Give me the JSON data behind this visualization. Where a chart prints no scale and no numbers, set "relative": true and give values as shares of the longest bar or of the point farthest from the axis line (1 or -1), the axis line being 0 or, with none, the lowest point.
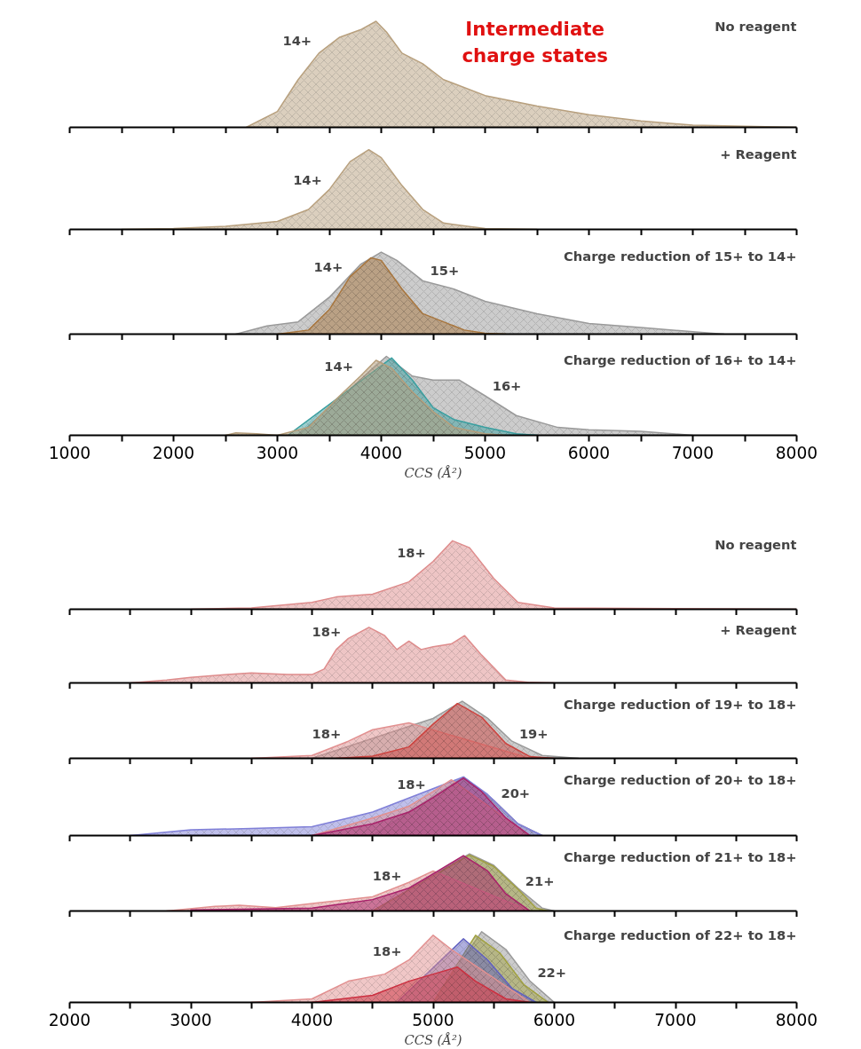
{
  "chart_data": [
    {
      "type": "area",
      "relative": true,
      "title": "No reagent",
      "xlim": [
        1000,
        8000
      ],
      "tick_labels": false,
      "xticks": [
        1000,
        {
          "value": 1500,
          "label": null
        },
        2000,
        {
          "value": 2500,
          "label": null
        },
        3000,
        {
          "value": 3500,
          "label": null
        },
        4000,
        {
          "value": 4500,
          "label": null
        },
        5000,
        {
          "value": 5500,
          "label": null
        },
        6000,
        {
          "value": 6500,
          "label": null
        },
        7000,
        {
          "value": 7500,
          "label": null
        },
        8000
      ],
      "annotations": [
        "Intermediate charge states"
      ],
      "series": [
        {
          "name": "14+",
          "color": "#b8a07e",
          "x": [
            2700,
            3000,
            3200,
            3400,
            3600,
            3800,
            3950,
            4050,
            4200,
            4400,
            4600,
            5000,
            5500,
            6000,
            6500,
            7000,
            7500,
            8000
          ],
          "values": [
            0,
            0.15,
            0.45,
            0.7,
            0.85,
            0.92,
            1.0,
            0.9,
            0.7,
            0.6,
            0.45,
            0.3,
            0.2,
            0.12,
            0.06,
            0.02,
            0.01,
            0
          ]
        }
      ]
    },
    {
      "type": "area",
      "relative": true,
      "title": "+ Reagent",
      "xlim": [
        1000,
        8000
      ],
      "tick_labels": false,
      "xticks": [
        1000,
        {
          "value": 1500,
          "label": null
        },
        2000,
        {
          "value": 2500,
          "label": null
        },
        3000,
        {
          "value": 3500,
          "label": null
        },
        4000,
        {
          "value": 4500,
          "label": null
        },
        5000,
        {
          "value": 5500,
          "label": null
        },
        6000,
        {
          "value": 6500,
          "label": null
        },
        7000,
        {
          "value": 7500,
          "label": null
        },
        8000
      ],
      "series": [
        {
          "name": "14+",
          "color": "#b8a07e",
          "x": [
            1500,
            2000,
            2500,
            3000,
            3300,
            3500,
            3700,
            3880,
            4000,
            4200,
            4400,
            4600,
            5000,
            5500
          ],
          "values": [
            0,
            0.01,
            0.04,
            0.1,
            0.25,
            0.5,
            0.85,
            1.0,
            0.9,
            0.55,
            0.25,
            0.08,
            0.01,
            0
          ]
        }
      ]
    },
    {
      "type": "area",
      "relative": true,
      "title": "Charge reduction of 15+ to 14+",
      "xlim": [
        1000,
        8000
      ],
      "tick_labels": false,
      "xticks": [
        1000,
        {
          "value": 1500,
          "label": null
        },
        2000,
        {
          "value": 2500,
          "label": null
        },
        3000,
        {
          "value": 3500,
          "label": null
        },
        4000,
        {
          "value": 4500,
          "label": null
        },
        5000,
        {
          "value": 5500,
          "label": null
        },
        6000,
        {
          "value": 6500,
          "label": null
        },
        7000,
        {
          "value": 7500,
          "label": null
        },
        8000
      ],
      "series": [
        {
          "name": "15+",
          "color": "#9a9a9a",
          "x": [
            2600,
            2900,
            3200,
            3500,
            3800,
            4000,
            4150,
            4400,
            4700,
            5000,
            5500,
            6000,
            6500,
            7000,
            7300
          ],
          "values": [
            0,
            0.1,
            0.15,
            0.45,
            0.85,
            1.0,
            0.9,
            0.65,
            0.55,
            0.4,
            0.25,
            0.13,
            0.08,
            0.03,
            0
          ]
        },
        {
          "name": "14+",
          "color": "#a8763e",
          "x": [
            3000,
            3300,
            3500,
            3700,
            3900,
            4000,
            4200,
            4400,
            4600,
            4800,
            5000,
            5200
          ],
          "values": [
            0,
            0.05,
            0.3,
            0.7,
            0.93,
            0.9,
            0.55,
            0.25,
            0.15,
            0.05,
            0.01,
            0
          ]
        }
      ]
    },
    {
      "type": "area",
      "relative": true,
      "title": "Charge reduction of 16+ to 14+",
      "xlim": [
        1000,
        8000
      ],
      "tick_labels": "x",
      "xlabel": "CCS (Å²)",
      "xticks": [
        1000,
        {
          "value": 1500,
          "label": null
        },
        2000,
        {
          "value": 2500,
          "label": null
        },
        3000,
        {
          "value": 3500,
          "label": null
        },
        4000,
        {
          "value": 4500,
          "label": null
        },
        5000,
        {
          "value": 5500,
          "label": null
        },
        6000,
        {
          "value": 6500,
          "label": null
        },
        7000,
        {
          "value": 7500,
          "label": null
        },
        8000
      ],
      "series": [
        {
          "name": "16+",
          "color": "#9a9a9a",
          "x": [
            3200,
            3500,
            3800,
            4050,
            4300,
            4500,
            4750,
            5000,
            5300,
            5700,
            6000,
            6500,
            7000
          ],
          "values": [
            0,
            null,
            null,
            1.0,
            0.75,
            0.7,
            0.7,
            0.5,
            0.25,
            0.1,
            0.07,
            0.05,
            0
          ]
        },
        {
          "color": "#3a9fa0",
          "x": [
            3100,
            3500,
            3800,
            4100,
            4300,
            4500,
            4700,
            5000,
            5300,
            5500
          ],
          "values": [
            0,
            null,
            null,
            0.98,
            0.7,
            0.35,
            0.2,
            0.1,
            0.02,
            0
          ]
        },
        {
          "name": "14+",
          "color": "#b59d7a",
          "x": [
            2500,
            2600,
            2800,
            3000,
            3300,
            3600,
            3800,
            3950,
            4100,
            4300,
            4500,
            4700,
            5000,
            5200
          ],
          "values": [
            0,
            0.03,
            0.02,
            0,
            0.1,
            0.5,
            0.75,
            0.95,
            0.85,
            0.55,
            0.3,
            0.1,
            0.02,
            0
          ]
        }
      ]
    },
    {
      "type": "area",
      "relative": true,
      "title": "No reagent",
      "xlim": [
        2000,
        8000
      ],
      "tick_labels": false,
      "xticks": [
        2000,
        {
          "value": 2500,
          "label": null
        },
        3000,
        {
          "value": 3500,
          "label": null
        },
        4000,
        {
          "value": 4500,
          "label": null
        },
        5000,
        {
          "value": 5500,
          "label": null
        },
        6000,
        {
          "value": 6500,
          "label": null
        },
        7000,
        {
          "value": 7500,
          "label": null
        },
        8000
      ],
      "series": [
        {
          "name": "18+",
          "color": "#de8c8c",
          "x": [
            3000,
            3500,
            4000,
            4200,
            4500,
            4800,
            5000,
            5160,
            5300,
            5500,
            5700,
            6000,
            7000,
            8000
          ],
          "values": [
            0,
            0.02,
            0.1,
            0.18,
            0.22,
            0.4,
            0.7,
            1.0,
            0.9,
            0.45,
            0.1,
            0.02,
            0.01,
            0
          ]
        }
      ]
    },
    {
      "type": "area",
      "relative": true,
      "title": "+ Reagent",
      "xlim": [
        2000,
        8000
      ],
      "tick_labels": false,
      "xticks": [
        2000,
        {
          "value": 2500,
          "label": null
        },
        3000,
        {
          "value": 3500,
          "label": null
        },
        4000,
        {
          "value": 4500,
          "label": null
        },
        5000,
        {
          "value": 5500,
          "label": null
        },
        6000,
        {
          "value": 6500,
          "label": null
        },
        7000,
        {
          "value": 7500,
          "label": null
        },
        8000
      ],
      "series": [
        {
          "name": "18+",
          "color": "#de8c8c",
          "x": [
            2500,
            2800,
            3000,
            3300,
            3500,
            3800,
            4000,
            4100,
            4200,
            4300,
            4470,
            4600,
            4700,
            4800,
            4900,
            5000,
            5150,
            5260,
            5400,
            5600,
            5800,
            6000
          ],
          "values": [
            0,
            0.05,
            0.1,
            0.15,
            0.18,
            0.15,
            0.15,
            0.25,
            0.6,
            0.8,
            1.0,
            0.85,
            0.6,
            0.75,
            0.6,
            0.65,
            0.7,
            0.85,
            0.5,
            0.05,
            0.01,
            0
          ]
        }
      ]
    },
    {
      "type": "area",
      "relative": true,
      "title": "Charge reduction of 19+ to 18+",
      "xlim": [
        2000,
        8000
      ],
      "tick_labels": false,
      "xticks": [
        2000,
        {
          "value": 2500,
          "label": null
        },
        3000,
        {
          "value": 3500,
          "label": null
        },
        4000,
        {
          "value": 4500,
          "label": null
        },
        5000,
        {
          "value": 5500,
          "label": null
        },
        6000,
        {
          "value": 6500,
          "label": null
        },
        7000,
        {
          "value": 7500,
          "label": null
        },
        8000
      ],
      "series": [
        {
          "name": "19+",
          "color": "#9a9a9a",
          "x": [
            4000,
            4500,
            4800,
            5000,
            5240,
            5450,
            5650,
            5900,
            6200
          ],
          "values": [
            0,
            null,
            null,
            0.7,
            1.0,
            0.7,
            0.3,
            0.05,
            0
          ]
        },
        {
          "name": "18+",
          "color": "#e29090",
          "x": [
            3500,
            4000,
            4300,
            4500,
            4800,
            5000,
            5200,
            5400,
            5600,
            5800
          ],
          "values": [
            0,
            0.05,
            0.3,
            0.5,
            0.62,
            null,
            null,
            null,
            null,
            0
          ]
        },
        {
          "color": "#cc4440",
          "x": [
            4200,
            4500,
            4800,
            5000,
            5200,
            5400,
            5600,
            5800,
            6000
          ],
          "values": [
            0,
            0.04,
            0.2,
            0.6,
            0.96,
            0.72,
            0.26,
            0.03,
            0
          ]
        }
      ]
    },
    {
      "type": "area",
      "relative": true,
      "title": "Charge reduction of 20+ to 18+",
      "xlim": [
        2000,
        8000
      ],
      "tick_labels": false,
      "xticks": [
        2000,
        {
          "value": 2500,
          "label": null
        },
        3000,
        {
          "value": 3500,
          "label": null
        },
        4000,
        {
          "value": 4500,
          "label": null
        },
        5000,
        {
          "value": 5500,
          "label": null
        },
        6000,
        {
          "value": 6500,
          "label": null
        },
        7000,
        {
          "value": 7500,
          "label": null
        },
        8000
      ],
      "series": [
        {
          "name": "20+",
          "color": "#9a9a9a",
          "x": [
            4500,
            4800,
            5000,
            5250,
            5500,
            5700,
            5900
          ],
          "values": [
            0,
            null,
            null,
            1.0,
            0.6,
            0.2,
            0
          ]
        },
        {
          "color": "#8080d8",
          "x": [
            2500,
            3000,
            3500,
            4000,
            4300,
            4500,
            4700,
            5000,
            5250,
            5450,
            5700,
            5900
          ],
          "values": [
            0,
            0.1,
            0.12,
            0.15,
            0.3,
            0.4,
            null,
            null,
            1.0,
            0.7,
            0.2,
            0
          ]
        },
        {
          "name": "18+",
          "color": "#e29090",
          "x": [
            4000,
            4500,
            4800,
            5000,
            5150,
            5300,
            5500,
            5700,
            5800
          ],
          "values": [
            0,
            0.3,
            0.5,
            0.75,
            0.95,
            null,
            null,
            null,
            0
          ]
        },
        {
          "color": "#a8226a",
          "x": [
            4000,
            4500,
            4800,
            5000,
            5250,
            5400,
            5600,
            5800
          ],
          "values": [
            0,
            0.2,
            0.4,
            0.65,
            0.98,
            0.75,
            0.3,
            0
          ]
        }
      ]
    },
    {
      "type": "area",
      "relative": true,
      "title": "Charge reduction of 21+ to 18+",
      "xlim": [
        2000,
        8000
      ],
      "tick_labels": false,
      "xticks": [
        2000,
        {
          "value": 2500,
          "label": null
        },
        3000,
        {
          "value": 3500,
          "label": null
        },
        4000,
        {
          "value": 4500,
          "label": null
        },
        5000,
        {
          "value": 5500,
          "label": null
        },
        6000,
        {
          "value": 6500,
          "label": null
        },
        7000,
        {
          "value": 7500,
          "label": null
        },
        8000
      ],
      "series": [
        {
          "name": "21+",
          "color": "#9a9a9a",
          "x": [
            4500,
            5000,
            5300,
            5500,
            5700,
            5900,
            6000
          ],
          "values": [
            0,
            null,
            1.0,
            0.8,
            0.4,
            0.05,
            0
          ]
        },
        {
          "color": "#a0a040",
          "x": [
            4500,
            5000,
            5300,
            5500,
            5700,
            5850,
            5950
          ],
          "values": [
            0,
            null,
            0.98,
            0.78,
            0.38,
            0.05,
            0
          ]
        },
        {
          "name": "18+",
          "color": "#e29090",
          "x": [
            2800,
            3200,
            3400,
            3700,
            4000,
            4500,
            4800,
            5000,
            5200,
            5400,
            5600,
            5800
          ],
          "values": [
            0,
            0.08,
            0.1,
            0.06,
            null,
            0.25,
            0.5,
            0.7,
            null,
            null,
            null,
            0
          ]
        },
        {
          "color": "#a8226a",
          "x": [
            3000,
            4000,
            4500,
            4800,
            5000,
            5250,
            5450,
            5600,
            5800
          ],
          "values": [
            0.02,
            0.05,
            0.2,
            0.4,
            0.65,
            0.97,
            0.7,
            0.3,
            0
          ]
        }
      ]
    },
    {
      "type": "area",
      "relative": true,
      "title": "Charge reduction of 22+ to 18+",
      "xlim": [
        2000,
        8000
      ],
      "tick_labels": "x",
      "xlabel": "CCS (Å²)",
      "xticks": [
        2000,
        {
          "value": 2500,
          "label": null
        },
        3000,
        {
          "value": 3500,
          "label": null
        },
        4000,
        {
          "value": 4500,
          "label": null
        },
        5000,
        {
          "value": 5500,
          "label": null
        },
        6000,
        {
          "value": 6500,
          "label": null
        },
        7000,
        {
          "value": 7500,
          "label": null
        },
        8000
      ],
      "series": [
        {
          "name": "22+",
          "color": "#9a9a9a",
          "x": [
            5000,
            5200,
            5400,
            5600,
            5800,
            6000
          ],
          "values": [
            0,
            null,
            1.0,
            0.75,
            0.3,
            0
          ]
        },
        {
          "color": "#a0a040",
          "x": [
            5000,
            5200,
            5350,
            5550,
            5750,
            5950
          ],
          "values": [
            0,
            null,
            0.95,
            0.7,
            0.25,
            0
          ]
        },
        {
          "color": "#6060c0",
          "x": [
            4700,
            5000,
            5250,
            5450,
            5650,
            5850
          ],
          "values": [
            0,
            null,
            0.9,
            0.6,
            0.2,
            0
          ]
        },
        {
          "name": "18+",
          "color": "#e29090",
          "x": [
            3500,
            4000,
            4300,
            4600,
            4800,
            5000,
            5150,
            5300,
            5500,
            5800
          ],
          "values": [
            0,
            0.05,
            0.3,
            0.4,
            0.6,
            0.95,
            0.75,
            null,
            null,
            0
          ]
        },
        {
          "color": "#cc3040",
          "x": [
            4000,
            4500,
            4800,
            5000,
            5200,
            5350,
            5600,
            5800
          ],
          "values": [
            0,
            0.1,
            0.3,
            0.4,
            0.5,
            0.3,
            0.05,
            0
          ]
        }
      ]
    }
  ]
}
